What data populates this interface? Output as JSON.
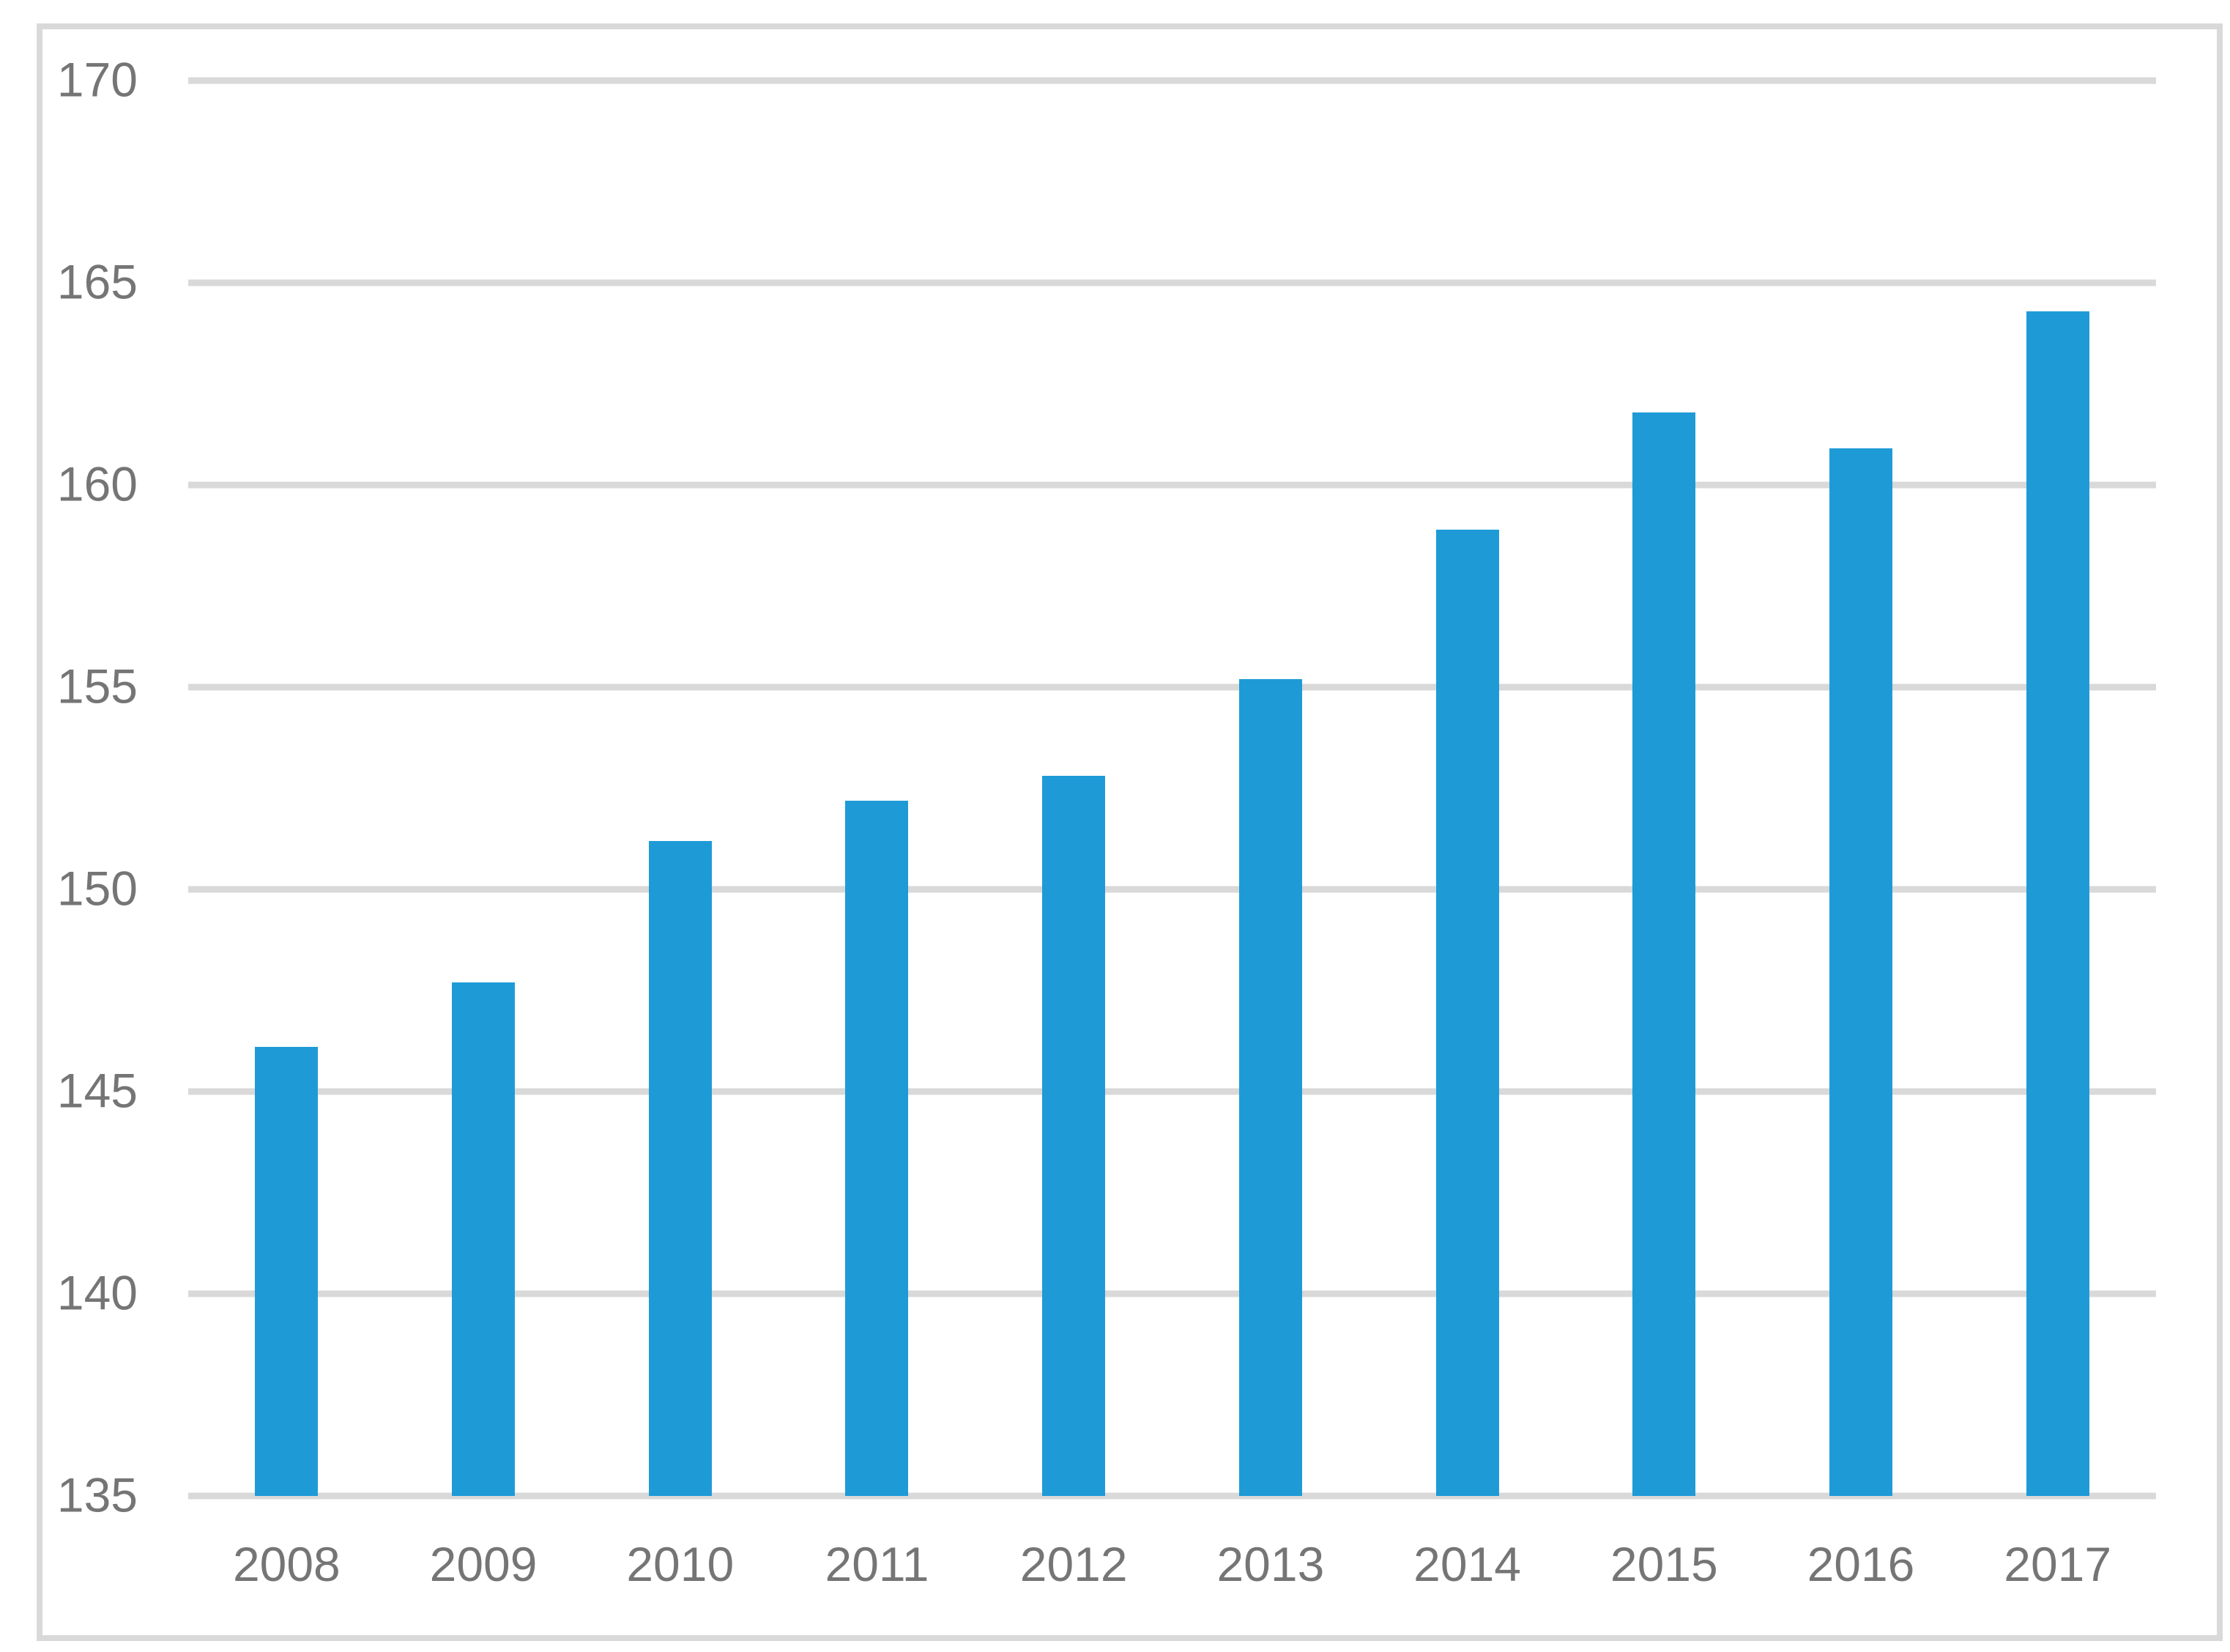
{
  "chart_data": {
    "type": "bar",
    "categories": [
      "2008",
      "2009",
      "2010",
      "2011",
      "2012",
      "2013",
      "2014",
      "2015",
      "2016",
      "2017"
    ],
    "values": [
      146.1,
      147.7,
      151.2,
      152.2,
      152.8,
      155.2,
      158.9,
      161.8,
      160.9,
      164.3
    ],
    "title": "",
    "xlabel": "",
    "ylabel": "",
    "ylim": [
      135,
      170
    ],
    "yticks": [
      135,
      140,
      145,
      150,
      155,
      160,
      165,
      170
    ],
    "grid": true,
    "legend_position": "none",
    "bar_color": "#1e9bd7",
    "gridline_color": "#d9d9d9",
    "frame_border_color": "#d9d9d9",
    "axis_label_color": "#757575",
    "background_color": "#ffffff"
  }
}
